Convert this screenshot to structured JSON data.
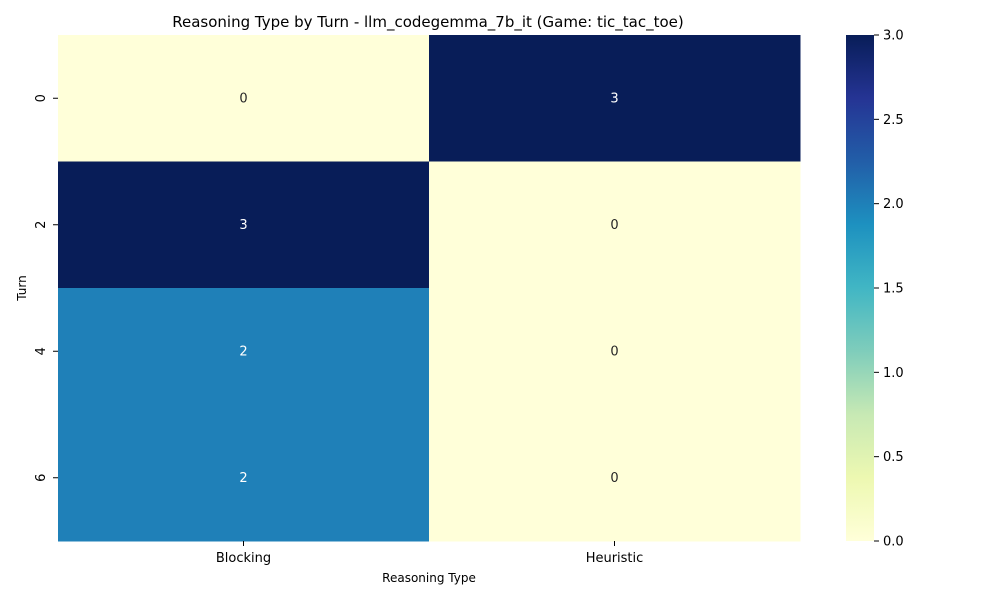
{
  "chart_data": {
    "type": "heatmap",
    "title": "Reasoning Type by Turn - llm_codegemma_7b_it (Game: tic_tac_toe)",
    "xlabel": "Reasoning Type",
    "ylabel": "Turn",
    "x_categories": [
      "Blocking",
      "Heuristic"
    ],
    "y_categories": [
      "0",
      "2",
      "4",
      "6"
    ],
    "values": [
      [
        0,
        3
      ],
      [
        3,
        0
      ],
      [
        2,
        0
      ],
      [
        2,
        0
      ]
    ],
    "colorbar": {
      "min": 0.0,
      "max": 3.0,
      "ticks": [
        "0.0",
        "0.5",
        "1.0",
        "1.5",
        "2.0",
        "2.5",
        "3.0"
      ],
      "colormap": "YlGnBu"
    },
    "colors": {
      "low": "#ffffd9",
      "high": "#081d58"
    }
  }
}
